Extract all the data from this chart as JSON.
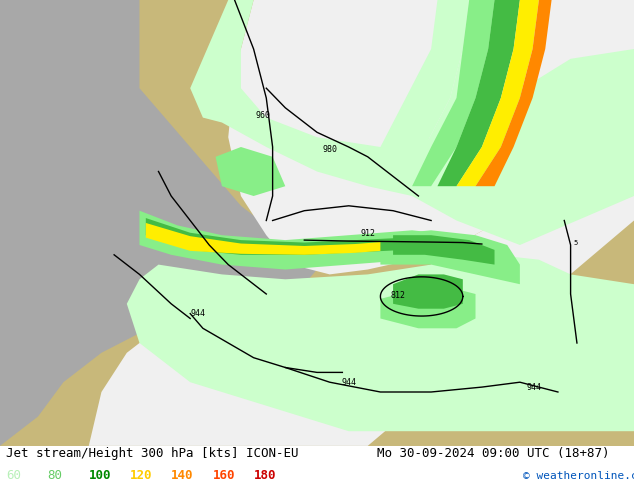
{
  "title_left": "Jet stream/Height 300 hPa [kts] ICON-EU",
  "title_right": "Mo 30-09-2024 09:00 UTC (18+87)",
  "copyright": "© weatheronline.co.uk",
  "legend_values": [
    60,
    80,
    100,
    120,
    140,
    160,
    180
  ],
  "legend_colors": [
    "#b8f0b8",
    "#66cc66",
    "#008800",
    "#ffcc00",
    "#ff8800",
    "#ff4400",
    "#cc0000"
  ],
  "figsize": [
    6.34,
    4.9
  ],
  "dpi": 100,
  "land_color": "#c8b87a",
  "ocean_color": "#a8a8a8",
  "white_domain": "#f0f0f0",
  "light_green": "#ccffcc",
  "med_green": "#88ee88",
  "dark_green": "#44bb44",
  "v_dark_green": "#007700",
  "yellow": "#ffee00",
  "orange": "#ff8800",
  "title_fontsize": 9,
  "legend_fontsize": 9,
  "copyright_color": "#0055bb"
}
